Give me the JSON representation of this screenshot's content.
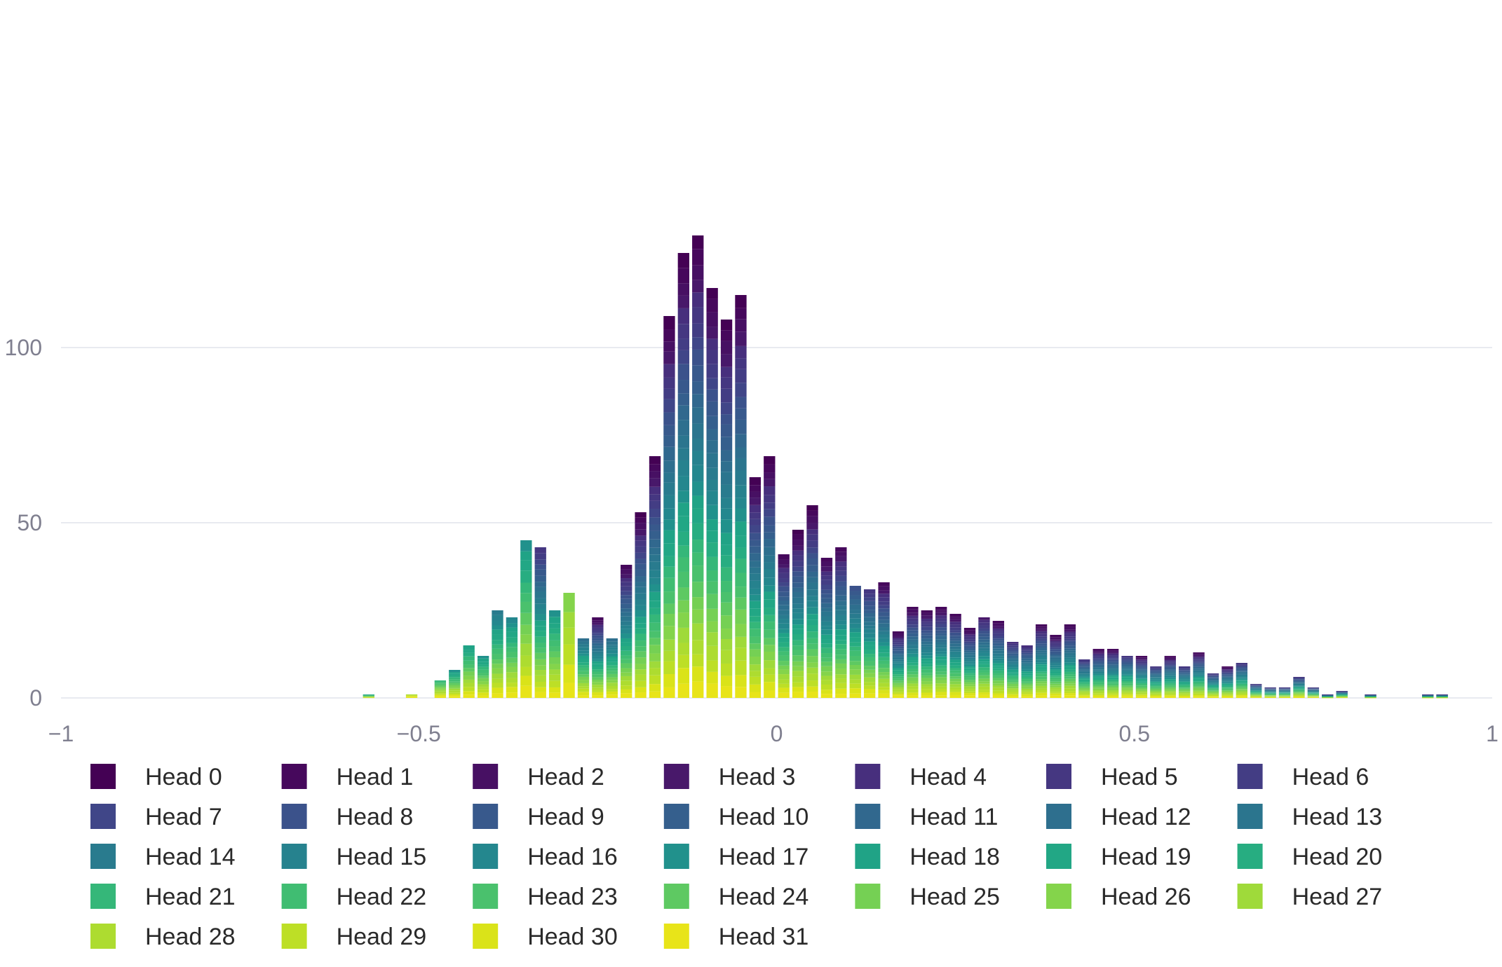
{
  "chart_data": {
    "type": "bar",
    "barmode": "stack",
    "title": "",
    "xlabel": "",
    "ylabel": "",
    "xlim": [
      -1,
      1
    ],
    "ylim": [
      0,
      132
    ],
    "bin_width": 0.02,
    "x_ticks": [
      {
        "value": -1,
        "label": "−1"
      },
      {
        "value": -0.5,
        "label": "−0.5"
      },
      {
        "value": 0,
        "label": "0"
      },
      {
        "value": 0.5,
        "label": "0.5"
      },
      {
        "value": 1,
        "label": "1"
      }
    ],
    "y_ticks": [
      {
        "value": 0,
        "label": "0"
      },
      {
        "value": 50,
        "label": "50"
      },
      {
        "value": 100,
        "label": "100"
      }
    ],
    "grid": true,
    "legend_placement": "bottom",
    "x": [
      -0.57,
      -0.51,
      -0.47,
      -0.45,
      -0.43,
      -0.41,
      -0.39,
      -0.37,
      -0.35,
      -0.33,
      -0.31,
      -0.29,
      -0.27,
      -0.25,
      -0.23,
      -0.21,
      -0.19,
      -0.17,
      -0.15,
      -0.13,
      -0.11,
      -0.09,
      -0.07,
      -0.05,
      -0.03,
      -0.01,
      0.01,
      0.03,
      0.05,
      0.07,
      0.09,
      0.11,
      0.13,
      0.15,
      0.17,
      0.19,
      0.21,
      0.23,
      0.25,
      0.27,
      0.29,
      0.31,
      0.33,
      0.35,
      0.37,
      0.39,
      0.41,
      0.43,
      0.45,
      0.47,
      0.49,
      0.51,
      0.53,
      0.55,
      0.57,
      0.59,
      0.61,
      0.63,
      0.65,
      0.67,
      0.69,
      0.71,
      0.73,
      0.75,
      0.77,
      0.79,
      0.83,
      0.91,
      0.93
    ],
    "totals": [
      1,
      1,
      5,
      8,
      15,
      12,
      25,
      23,
      45,
      43,
      25,
      30,
      17,
      23,
      17,
      38,
      53,
      69,
      109,
      127,
      132,
      117,
      108,
      115,
      63,
      69,
      41,
      48,
      55,
      40,
      43,
      32,
      31,
      33,
      19,
      26,
      25,
      26,
      24,
      20,
      23,
      22,
      16,
      15,
      21,
      18,
      21,
      11,
      14,
      14,
      12,
      12,
      9,
      12,
      9,
      13,
      7,
      9,
      10,
      4,
      3,
      3,
      6,
      3,
      1,
      2,
      1,
      1,
      1
    ],
    "segment_top_head": [
      18,
      28,
      21,
      17,
      18,
      17,
      14,
      16,
      17,
      5,
      17,
      26,
      12,
      1,
      12,
      1,
      0,
      0,
      0,
      0,
      0,
      0,
      0,
      0,
      0,
      0,
      1,
      0,
      0,
      1,
      1,
      8,
      5,
      1,
      1,
      1,
      1,
      1,
      1,
      1,
      3,
      1,
      4,
      4,
      1,
      1,
      1,
      5,
      1,
      1,
      5,
      1,
      5,
      1,
      5,
      1,
      5,
      1,
      5,
      5,
      5,
      5,
      5,
      5,
      5,
      5,
      5,
      5,
      5
    ],
    "series": [
      {
        "name": "Head 0",
        "color": "#440154"
      },
      {
        "name": "Head 1",
        "color": "#46085c"
      },
      {
        "name": "Head 2",
        "color": "#471063"
      },
      {
        "name": "Head 3",
        "color": "#48186a"
      },
      {
        "name": "Head 4",
        "color": "#472f7d"
      },
      {
        "name": "Head 5",
        "color": "#453781"
      },
      {
        "name": "Head 6",
        "color": "#433d84"
      },
      {
        "name": "Head 7",
        "color": "#404688"
      },
      {
        "name": "Head 8",
        "color": "#3b528b"
      },
      {
        "name": "Head 9",
        "color": "#38598c"
      },
      {
        "name": "Head 10",
        "color": "#355f8d"
      },
      {
        "name": "Head 11",
        "color": "#31688e"
      },
      {
        "name": "Head 12",
        "color": "#2e6f8e"
      },
      {
        "name": "Head 13",
        "color": "#2b758e"
      },
      {
        "name": "Head 14",
        "color": "#297b8e"
      },
      {
        "name": "Head 15",
        "color": "#26828e"
      },
      {
        "name": "Head 16",
        "color": "#24878e"
      },
      {
        "name": "Head 17",
        "color": "#21918c"
      },
      {
        "name": "Head 18",
        "color": "#20a386"
      },
      {
        "name": "Head 19",
        "color": "#22a785"
      },
      {
        "name": "Head 20",
        "color": "#27ad81"
      },
      {
        "name": "Head 21",
        "color": "#35b779"
      },
      {
        "name": "Head 22",
        "color": "#40bd72"
      },
      {
        "name": "Head 23",
        "color": "#4ac16d"
      },
      {
        "name": "Head 24",
        "color": "#5ec962"
      },
      {
        "name": "Head 25",
        "color": "#75d054"
      },
      {
        "name": "Head 26",
        "color": "#84d44b"
      },
      {
        "name": "Head 27",
        "color": "#9fda3a"
      },
      {
        "name": "Head 28",
        "color": "#addc30"
      },
      {
        "name": "Head 29",
        "color": "#bddf26"
      },
      {
        "name": "Head 30",
        "color": "#dae319"
      },
      {
        "name": "Head 31",
        "color": "#e8e419"
      }
    ]
  },
  "colors": {
    "grid": "#e8eaf0",
    "tick_text": "#7f7f8f",
    "legend_text": "#2a2a2a"
  }
}
